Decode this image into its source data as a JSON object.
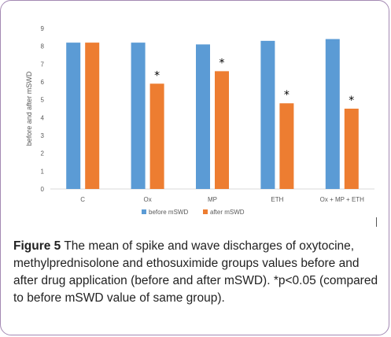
{
  "chart_data": {
    "type": "bar",
    "categories": [
      "C",
      "Ox",
      "MP",
      "ETH",
      "Ox + MP + ETH"
    ],
    "series": [
      {
        "name": "before mSWD",
        "values": [
          8.2,
          8.2,
          8.1,
          8.3,
          8.4
        ],
        "color": "#5b9bd5"
      },
      {
        "name": "after mSWD",
        "values": [
          8.2,
          5.9,
          6.6,
          4.8,
          4.5
        ],
        "color": "#ed7d31"
      }
    ],
    "significance_marker": "*",
    "significant": [
      false,
      true,
      true,
      true,
      true
    ],
    "ylabel": "before and after mSWD",
    "xlabel": "",
    "ylim": [
      0,
      9
    ],
    "yticks": [
      0,
      1,
      2,
      3,
      4,
      5,
      6,
      7,
      8,
      9
    ],
    "grid": false,
    "legend_position": "bottom-center"
  },
  "caption": {
    "label": "Figure 5",
    "text": " The mean of spike and wave discharges of oxytocine, methylprednisolone and ethosuximide groups values before and after drug application (before and after mSWD). *p<0.05 (compared to before mSWD value of same group)."
  }
}
